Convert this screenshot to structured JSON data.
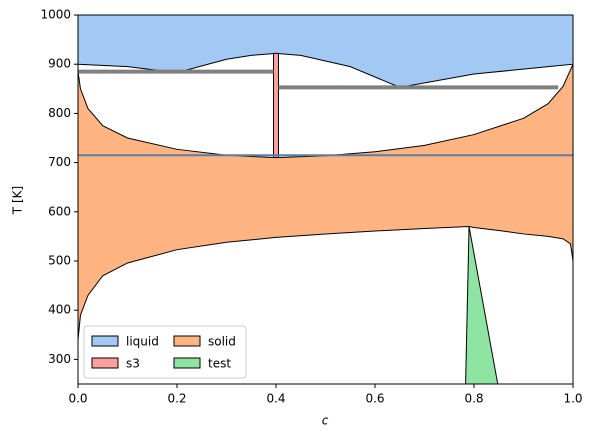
{
  "chart_data": {
    "type": "area",
    "xlabel": "c",
    "ylabel": "T [K]",
    "xlim": [
      0,
      1
    ],
    "ylim": [
      250,
      1000
    ],
    "xticks": [
      {
        "value": 0,
        "label": "0.0"
      },
      {
        "value": 0.2,
        "label": "0.2"
      },
      {
        "value": 0.4,
        "label": "0.4"
      },
      {
        "value": 0.6,
        "label": "0.6"
      },
      {
        "value": 0.8,
        "label": "0.8"
      },
      {
        "value": 1,
        "label": "1.0"
      }
    ],
    "yticks": [
      300,
      400,
      500,
      600,
      700,
      800,
      900,
      1000
    ],
    "legend": "lower left",
    "series": [
      {
        "name": "liquid",
        "color": "#a1c9f4",
        "x": [
          0,
          0.1,
          0.2,
          0.3,
          0.35,
          0.4,
          0.45,
          0.55,
          0.65,
          0.8,
          0.95,
          1,
          1,
          0
        ],
        "y": [
          900,
          895,
          883,
          910,
          918,
          922,
          918,
          895,
          853,
          880,
          895,
          900,
          1000,
          1000
        ]
      },
      {
        "name": "s3",
        "color": "#ff9f9b",
        "x": [
          0.395,
          0.405,
          0.405,
          0.395
        ],
        "y": [
          710,
          710,
          922,
          922
        ]
      },
      {
        "name": "solid",
        "color": "#ffb482",
        "x": [
          0,
          0.005,
          0.02,
          0.05,
          0.1,
          0.2,
          0.3,
          0.4,
          0.5,
          0.6,
          0.7,
          0.8,
          0.9,
          0.95,
          0.98,
          1,
          1,
          0.995,
          0.98,
          0.95,
          0.9,
          0.85,
          0.8,
          0.79,
          0.7,
          0.6,
          0.5,
          0.4,
          0.3,
          0.2,
          0.1,
          0.05,
          0.02,
          0.005,
          0
        ],
        "y": [
          885,
          850,
          810,
          775,
          750,
          727,
          715,
          710,
          714,
          722,
          735,
          757,
          790,
          820,
          855,
          900,
          500,
          535,
          545,
          550,
          555,
          562,
          568,
          570,
          566,
          561,
          555,
          548,
          538,
          523,
          496,
          470,
          430,
          390,
          340
        ]
      },
      {
        "name": "test",
        "color": "#8de5a1",
        "x": [
          0.783,
          0.79,
          0.848
        ],
        "y": [
          250,
          570,
          250
        ]
      }
    ],
    "lines": [
      {
        "color": "#808080",
        "x": [
          0,
          0.395
        ],
        "y": [
          885,
          885
        ]
      },
      {
        "color": "#808080",
        "x": [
          0.405,
          0.97
        ],
        "y": [
          853,
          853
        ]
      },
      {
        "color": "#5b7fa3",
        "x": [
          0,
          1
        ],
        "y": [
          715,
          715
        ]
      }
    ]
  }
}
